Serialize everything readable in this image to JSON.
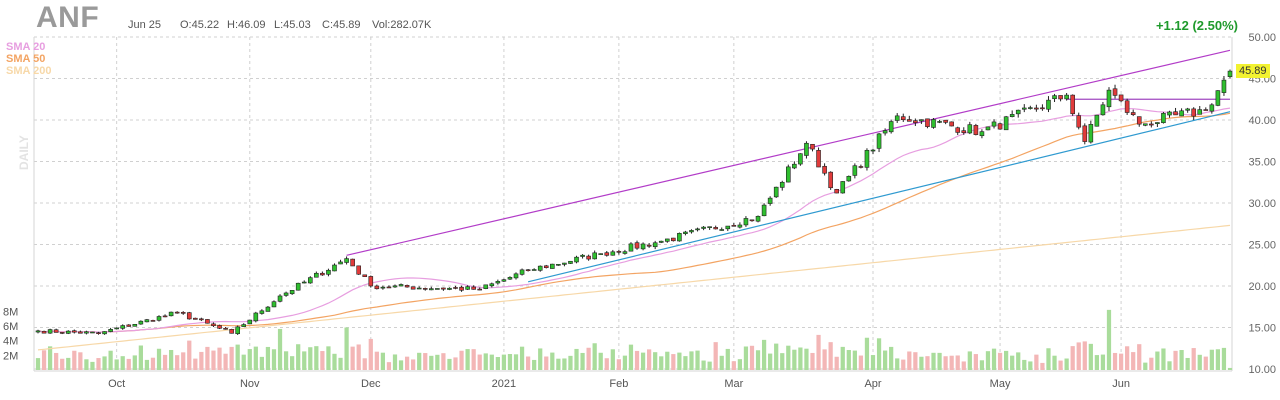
{
  "header": {
    "ticker": "ANF",
    "date": "Jun 25",
    "open": "O:45.22",
    "high": "H:46.09",
    "low": "L:45.03",
    "close": "C:45.89",
    "volume": "Vol:282.07K",
    "change": "+1.12 (2.50%)"
  },
  "legend": {
    "sma20": "SMA 20",
    "sma50": "SMA 50",
    "sma200": "SMA 200"
  },
  "side_label": "DAILY",
  "last_price": "45.89",
  "colors": {
    "up": "#2fbf2f",
    "down": "#e03b3b",
    "vol_up": "#a9dc9b",
    "vol_down": "#f3b6b6",
    "sma20": "#e79ee0",
    "sma50": "#f3a463",
    "sma200": "#f7d8a8",
    "channel_top": "#b23cc8",
    "channel_bottom": "#2f9ad0",
    "resistance": "#a048c0",
    "grid": "#d0d0d0"
  },
  "chart_data": {
    "type": "candlestick",
    "interval": "daily",
    "ylim": [
      10,
      50
    ],
    "y_ticks": [
      "50.00",
      "45.00",
      "40.00",
      "35.00",
      "30.00",
      "25.00",
      "20.00",
      "15.00",
      "10.00"
    ],
    "volume_ticks": [
      "8M",
      "6M",
      "4M",
      "2M"
    ],
    "x_labels": [
      "Oct",
      "Nov",
      "Dec",
      "2021",
      "Feb",
      "Mar",
      "Apr",
      "May",
      "Jun"
    ],
    "x_label_dates": [
      "2020-10-01",
      "2020-11-02",
      "2020-12-01",
      "2021-01-04",
      "2021-02-01",
      "2021-03-01",
      "2021-04-01",
      "2021-05-03",
      "2021-06-01"
    ],
    "key_closes": [
      {
        "date": "2020-09-14",
        "close": 14.6
      },
      {
        "date": "2020-09-28",
        "close": 14.3
      },
      {
        "date": "2020-10-15",
        "close": 16.8
      },
      {
        "date": "2020-10-28",
        "close": 14.3
      },
      {
        "date": "2020-11-09",
        "close": 18.8
      },
      {
        "date": "2020-11-24",
        "close": 23.3
      },
      {
        "date": "2020-12-01",
        "close": 20.0
      },
      {
        "date": "2020-12-28",
        "close": 19.6
      },
      {
        "date": "2021-01-08",
        "close": 21.9
      },
      {
        "date": "2021-01-27",
        "close": 23.9
      },
      {
        "date": "2021-02-10",
        "close": 25.4
      },
      {
        "date": "2021-03-05",
        "close": 28.4
      },
      {
        "date": "2021-03-17",
        "close": 37.2
      },
      {
        "date": "2021-03-24",
        "close": 31.2
      },
      {
        "date": "2021-04-08",
        "close": 40.5
      },
      {
        "date": "2021-04-28",
        "close": 38.6
      },
      {
        "date": "2021-05-18",
        "close": 43.0
      },
      {
        "date": "2021-05-21",
        "close": 37.4
      },
      {
        "date": "2021-05-27",
        "close": 43.6
      },
      {
        "date": "2021-06-04",
        "close": 39.5
      },
      {
        "date": "2021-06-21",
        "close": 41.2
      },
      {
        "date": "2021-06-25",
        "open": 45.22,
        "high": 46.09,
        "low": 45.03,
        "close": 45.89,
        "volume": 282070
      }
    ],
    "sma_periods": [
      20,
      50,
      200
    ],
    "trendlines": [
      {
        "name": "upper channel",
        "from": {
          "date": "2020-11-24",
          "price": 23.7
        },
        "to": {
          "date": "2021-06-25",
          "price": 48.4
        }
      },
      {
        "name": "lower support",
        "from": {
          "date": "2021-01-08",
          "price": 20.5
        },
        "to": {
          "date": "2021-06-25",
          "price": 41.0
        }
      },
      {
        "name": "resistance",
        "from": {
          "date": "2021-05-18",
          "price": 42.5
        },
        "to": {
          "date": "2021-06-25",
          "price": 42.5
        }
      }
    ]
  }
}
